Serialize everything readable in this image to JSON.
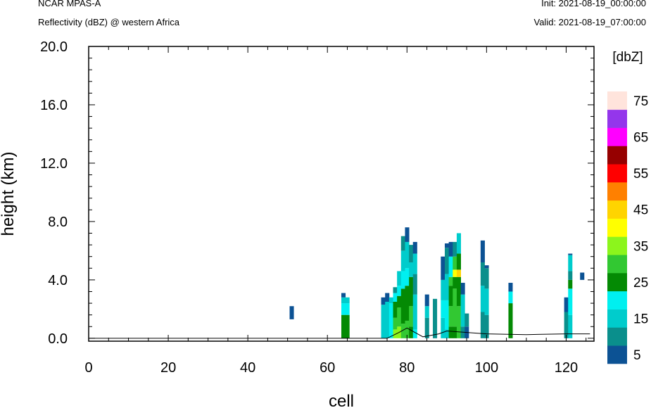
{
  "header": {
    "model": "NCAR MPAS-A",
    "subtitle": "Reflectivity (dBZ) @ western Africa",
    "init": "Init: 2021-08-19_00:00:00",
    "valid": "Valid: 2021-08-19_07:00:00"
  },
  "colorbar": {
    "title": "[dbZ]",
    "levels": [
      5,
      10,
      15,
      20,
      25,
      30,
      35,
      40,
      45,
      50,
      55,
      60,
      65,
      70,
      75
    ],
    "labels": [
      "5",
      "15",
      "25",
      "35",
      "45",
      "55",
      "65",
      "75"
    ],
    "colors": [
      "#0c5294",
      "#0a8f8c",
      "#00cccc",
      "#00f0f0",
      "#048a04",
      "#32c832",
      "#8cf51c",
      "#ffff00",
      "#ffd400",
      "#ff8000",
      "#ff0000",
      "#960000",
      "#ff00ff",
      "#9436eb",
      "#ffe4dc"
    ]
  },
  "chart_data": {
    "type": "heatmap",
    "title": "Reflectivity (dBZ) @ western Africa",
    "xlabel": "cell",
    "ylabel": "height (km)",
    "xlim": [
      0,
      127
    ],
    "ylim": [
      -0.2,
      20.0
    ],
    "xticks": [
      0,
      20,
      40,
      60,
      80,
      100,
      120
    ],
    "yticks": [
      0.0,
      4.0,
      8.0,
      12.0,
      16.0,
      20.0
    ],
    "xtick_labels": [
      "0",
      "20",
      "40",
      "60",
      "80",
      "100",
      "120"
    ],
    "ytick_labels": [
      "0.0",
      "4.0",
      "8.0",
      "12.0",
      "16.0",
      "20.0"
    ],
    "grid": false,
    "value_unit": "dBZ",
    "columns": [
      {
        "x": 51,
        "segments": [
          [
            1.3,
            2.2,
            5
          ]
        ]
      },
      {
        "x": 64,
        "segments": [
          [
            0.0,
            1.6,
            25
          ],
          [
            1.6,
            2.4,
            20
          ],
          [
            2.4,
            2.8,
            15
          ],
          [
            2.8,
            3.1,
            5
          ]
        ]
      },
      {
        "x": 65,
        "segments": [
          [
            0.0,
            1.6,
            25
          ],
          [
            1.6,
            2.4,
            20
          ],
          [
            2.4,
            2.8,
            15
          ]
        ]
      },
      {
        "x": 74,
        "segments": [
          [
            0.0,
            2.3,
            15
          ],
          [
            2.3,
            2.8,
            5
          ]
        ]
      },
      {
        "x": 75,
        "segments": [
          [
            0.0,
            2.5,
            15
          ],
          [
            2.5,
            3.1,
            5
          ]
        ]
      },
      {
        "x": 76,
        "segments": [
          [
            0.0,
            2.4,
            20
          ],
          [
            2.4,
            2.8,
            15
          ]
        ]
      },
      {
        "x": 77,
        "segments": [
          [
            0.0,
            0.6,
            35
          ],
          [
            0.6,
            1.4,
            30
          ],
          [
            1.4,
            2.5,
            25
          ],
          [
            2.5,
            3.1,
            20
          ],
          [
            3.1,
            3.5,
            10
          ]
        ]
      },
      {
        "x": 78,
        "segments": [
          [
            0.0,
            0.8,
            35
          ],
          [
            0.8,
            2.1,
            30
          ],
          [
            2.1,
            2.9,
            25
          ],
          [
            2.9,
            3.6,
            20
          ],
          [
            3.6,
            4.6,
            15
          ]
        ]
      },
      {
        "x": 79,
        "segments": [
          [
            0.0,
            1.0,
            30
          ],
          [
            1.0,
            3.4,
            25
          ],
          [
            3.4,
            4.6,
            20
          ],
          [
            4.6,
            6.0,
            15
          ],
          [
            6.0,
            7.0,
            10
          ]
        ]
      },
      {
        "x": 80,
        "segments": [
          [
            0.0,
            1.2,
            30
          ],
          [
            1.2,
            3.6,
            25
          ],
          [
            3.6,
            4.8,
            20
          ],
          [
            4.8,
            6.6,
            15
          ],
          [
            6.6,
            7.6,
            5
          ]
        ]
      },
      {
        "x": 81,
        "segments": [
          [
            0.0,
            0.8,
            25
          ],
          [
            0.8,
            2.2,
            30
          ],
          [
            2.2,
            4.2,
            25
          ],
          [
            4.2,
            5.2,
            15
          ],
          [
            5.2,
            6.4,
            10
          ]
        ]
      },
      {
        "x": 82,
        "segments": [
          [
            0.0,
            0.6,
            20
          ],
          [
            0.6,
            3.0,
            15
          ],
          [
            3.0,
            4.4,
            10
          ],
          [
            4.4,
            5.8,
            15
          ],
          [
            5.8,
            6.6,
            5
          ]
        ]
      },
      {
        "x": 85,
        "segments": [
          [
            0.0,
            1.4,
            10
          ],
          [
            1.4,
            2.2,
            15
          ],
          [
            2.2,
            3.0,
            5
          ]
        ]
      },
      {
        "x": 87,
        "segments": [
          [
            0.0,
            2.7,
            10
          ]
        ]
      },
      {
        "x": 89,
        "segments": [
          [
            0.0,
            1.4,
            15
          ],
          [
            1.4,
            2.6,
            20
          ],
          [
            2.6,
            4.0,
            15
          ],
          [
            4.0,
            5.6,
            5
          ]
        ]
      },
      {
        "x": 90,
        "segments": [
          [
            0.0,
            0.6,
            15
          ],
          [
            0.6,
            2.6,
            20
          ],
          [
            2.6,
            4.4,
            15
          ],
          [
            4.4,
            6.2,
            10
          ],
          [
            6.2,
            6.5,
            5
          ]
        ]
      },
      {
        "x": 91,
        "segments": [
          [
            0.0,
            0.8,
            25
          ],
          [
            0.8,
            2.2,
            30
          ],
          [
            2.2,
            3.6,
            25
          ],
          [
            3.6,
            4.2,
            30
          ],
          [
            4.2,
            5.6,
            20
          ],
          [
            5.6,
            6.6,
            5
          ]
        ]
      },
      {
        "x": 92,
        "segments": [
          [
            0.0,
            0.8,
            25
          ],
          [
            0.8,
            3.4,
            30
          ],
          [
            3.4,
            4.2,
            25
          ],
          [
            4.2,
            4.7,
            40
          ],
          [
            4.7,
            5.6,
            30
          ],
          [
            5.6,
            6.6,
            10
          ]
        ]
      },
      {
        "x": 93,
        "segments": [
          [
            0.0,
            2.2,
            30
          ],
          [
            2.2,
            4.2,
            25
          ],
          [
            4.2,
            4.7,
            45
          ],
          [
            4.7,
            5.8,
            25
          ],
          [
            5.8,
            7.2,
            15
          ]
        ]
      },
      {
        "x": 94,
        "segments": [
          [
            0.0,
            0.8,
            10
          ],
          [
            0.8,
            3.0,
            15
          ],
          [
            3.0,
            3.8,
            5
          ]
        ]
      },
      {
        "x": 95,
        "segments": [
          [
            0.0,
            0.8,
            5
          ],
          [
            0.8,
            1.7,
            10
          ]
        ]
      },
      {
        "x": 99,
        "segments": [
          [
            0.0,
            1.8,
            10
          ],
          [
            1.8,
            3.6,
            15
          ],
          [
            3.6,
            5.2,
            10
          ],
          [
            5.2,
            6.7,
            5
          ]
        ]
      },
      {
        "x": 100,
        "segments": [
          [
            0.0,
            1.6,
            10
          ],
          [
            1.6,
            3.4,
            15
          ],
          [
            3.4,
            4.8,
            10
          ],
          [
            4.8,
            5.0,
            5
          ]
        ]
      },
      {
        "x": 106,
        "segments": [
          [
            0.0,
            2.4,
            25
          ],
          [
            2.4,
            3.2,
            20
          ],
          [
            3.2,
            3.8,
            5
          ]
        ]
      },
      {
        "x": 120,
        "segments": [
          [
            0.0,
            1.8,
            10
          ],
          [
            1.8,
            2.8,
            5
          ]
        ]
      },
      {
        "x": 121,
        "segments": [
          [
            0.0,
            1.6,
            15
          ],
          [
            1.6,
            3.4,
            20
          ],
          [
            3.4,
            4.0,
            25
          ],
          [
            4.0,
            4.6,
            10
          ],
          [
            4.6,
            5.7,
            15
          ],
          [
            5.7,
            5.8,
            5
          ]
        ]
      },
      {
        "x": 124,
        "segments": [
          [
            4.0,
            4.5,
            5
          ]
        ]
      }
    ],
    "terrain": [
      [
        0,
        0.0
      ],
      [
        75,
        0.0
      ],
      [
        78,
        0.4
      ],
      [
        80,
        0.7
      ],
      [
        82,
        0.4
      ],
      [
        84,
        0.1
      ],
      [
        86,
        0.2
      ],
      [
        88,
        0.3
      ],
      [
        90,
        0.5
      ],
      [
        95,
        0.4
      ],
      [
        100,
        0.3
      ],
      [
        110,
        0.25
      ],
      [
        120,
        0.3
      ],
      [
        126,
        0.3
      ]
    ]
  }
}
